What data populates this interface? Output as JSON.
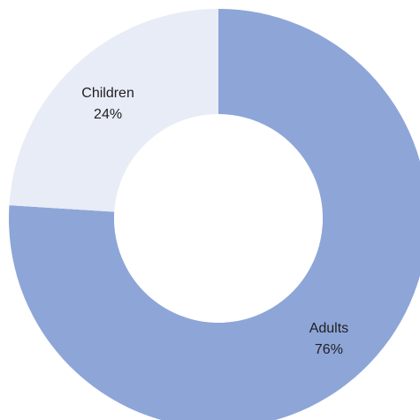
{
  "chart_data": {
    "type": "pie",
    "variant": "donut",
    "title": "",
    "legend": "none",
    "slices": [
      {
        "label": "Adults",
        "value": 76,
        "value_label": "76%",
        "color": "#8ea5d8"
      },
      {
        "label": "Children",
        "value": 24,
        "value_label": "24%",
        "color": "#e8ecf7"
      }
    ]
  }
}
